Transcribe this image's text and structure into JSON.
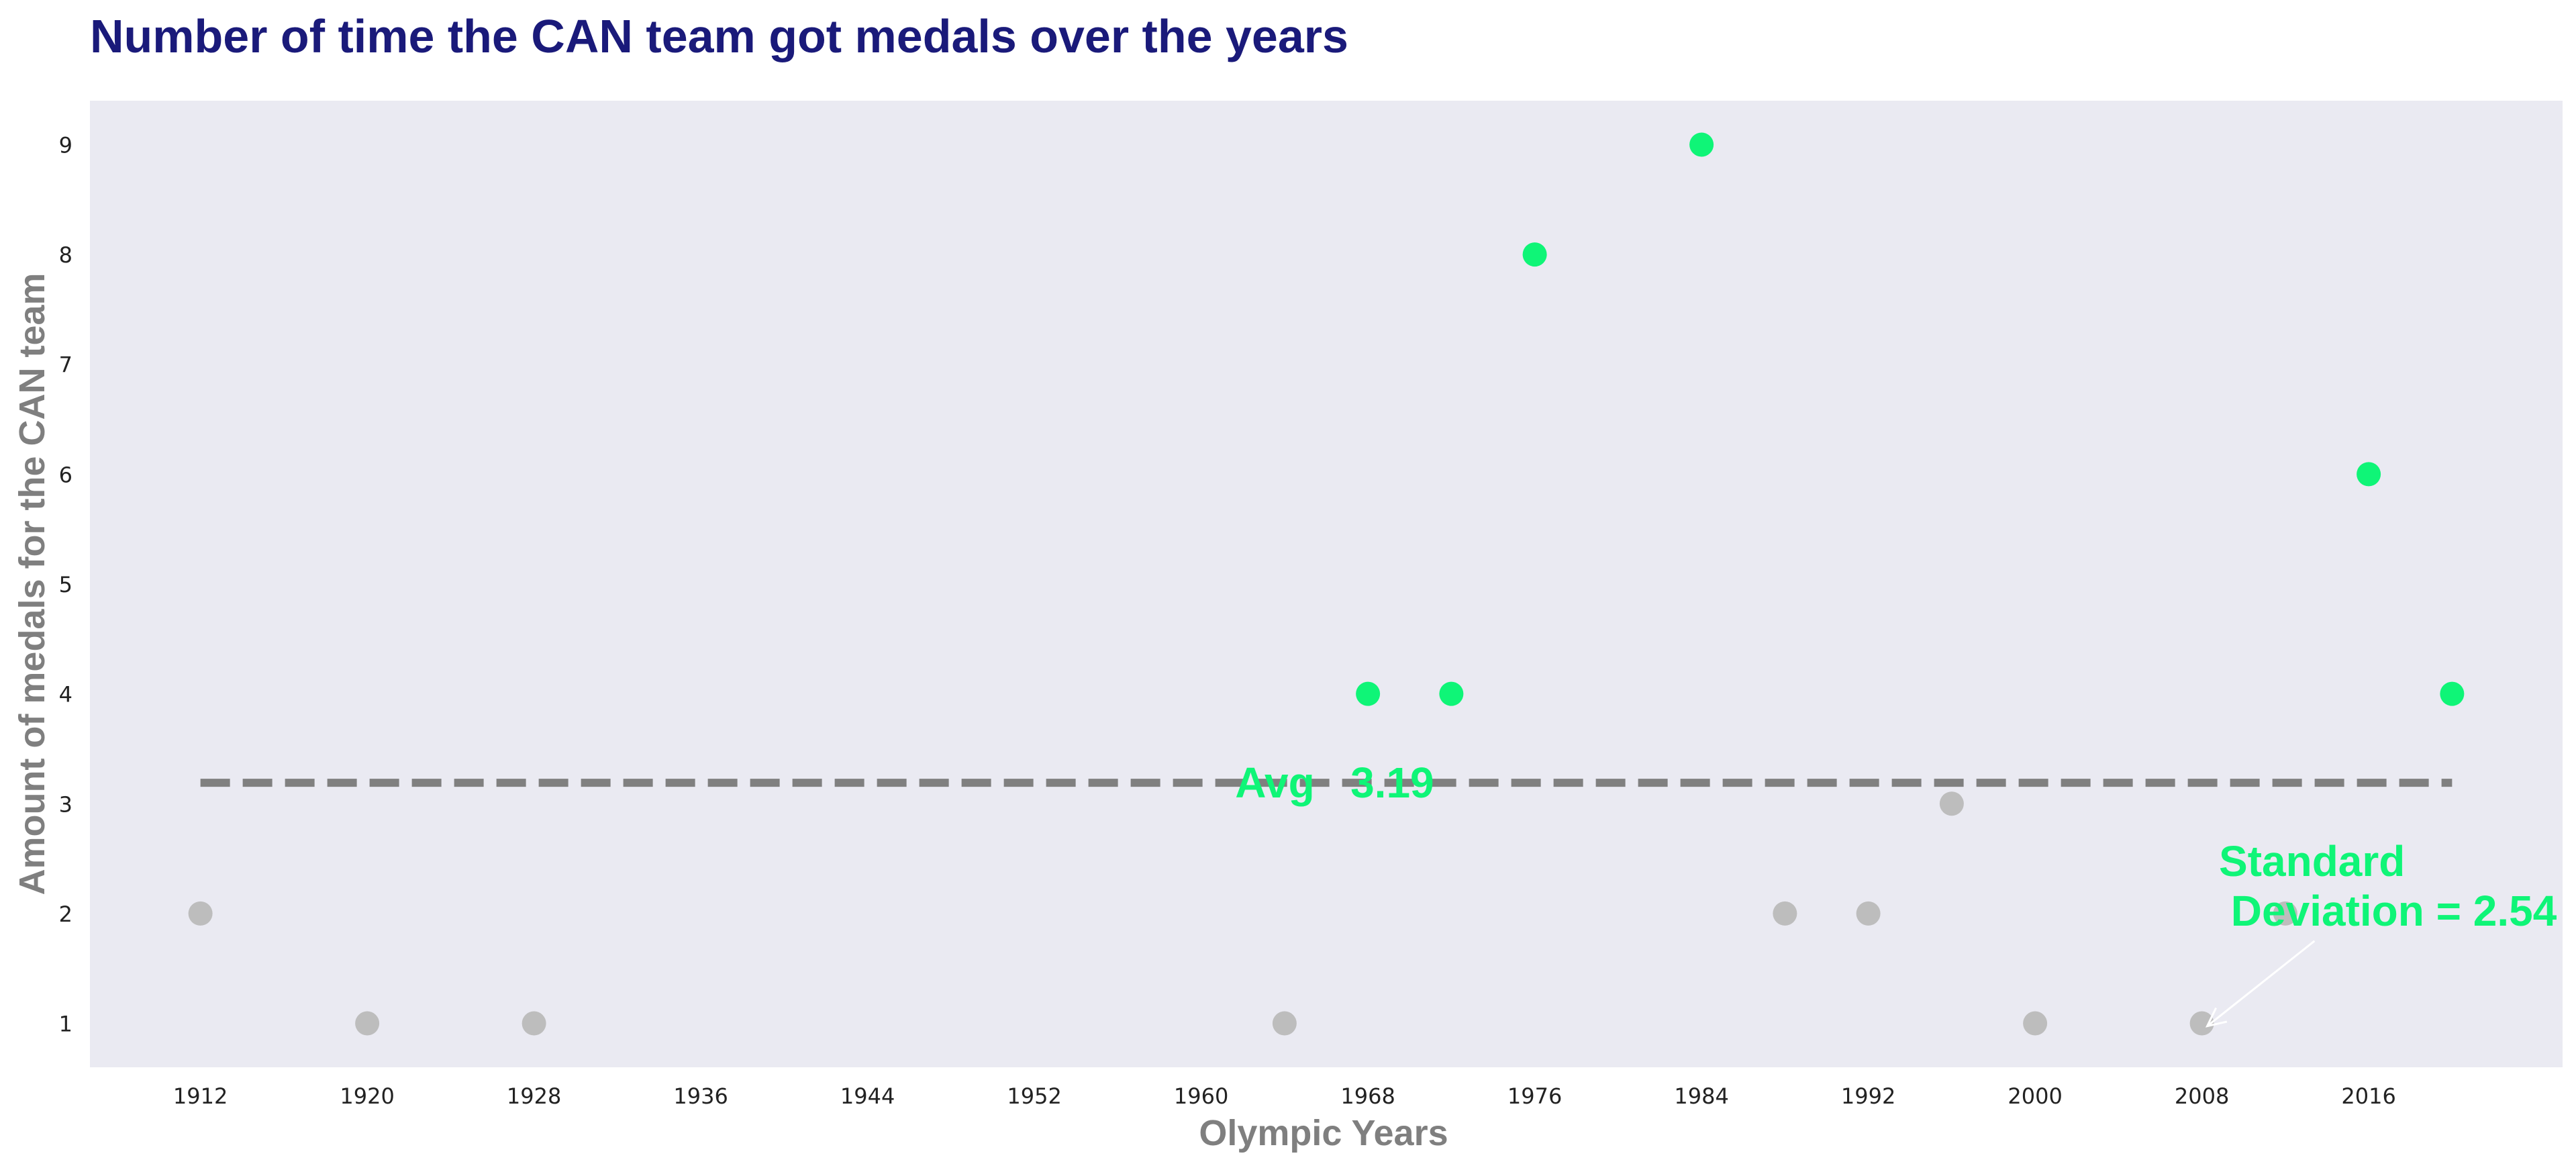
{
  "chart_data": {
    "type": "scatter",
    "title": "Number of time the CAN team got medals over the years",
    "xlabel": "Olympic Years",
    "ylabel": "Amount of medals for the CAN team",
    "xlim": [
      1906.7,
      2025.3
    ],
    "ylim": [
      0.6,
      9.4
    ],
    "xticks": [
      1912,
      1920,
      1928,
      1936,
      1944,
      1952,
      1960,
      1968,
      1976,
      1984,
      1992,
      2000,
      2008,
      2016
    ],
    "yticks": [
      1,
      2,
      3,
      4,
      5,
      6,
      7,
      8,
      9
    ],
    "grid": false,
    "points": [
      {
        "x": 1912,
        "y": 2,
        "above_average": false
      },
      {
        "x": 1920,
        "y": 1,
        "above_average": false
      },
      {
        "x": 1928,
        "y": 1,
        "above_average": false
      },
      {
        "x": 1964,
        "y": 1,
        "above_average": false
      },
      {
        "x": 1968,
        "y": 4,
        "above_average": true
      },
      {
        "x": 1972,
        "y": 4,
        "above_average": true
      },
      {
        "x": 1976,
        "y": 8,
        "above_average": true
      },
      {
        "x": 1984,
        "y": 9,
        "above_average": true
      },
      {
        "x": 1988,
        "y": 2,
        "above_average": false
      },
      {
        "x": 1992,
        "y": 2,
        "above_average": false
      },
      {
        "x": 1996,
        "y": 3,
        "above_average": false
      },
      {
        "x": 2000,
        "y": 1,
        "above_average": false
      },
      {
        "x": 2008,
        "y": 1,
        "above_average": false
      },
      {
        "x": 2012,
        "y": 2,
        "above_average": false
      },
      {
        "x": 2016,
        "y": 6,
        "above_average": true
      },
      {
        "x": 2020,
        "y": 4,
        "above_average": true
      }
    ],
    "average": {
      "value": 3.19,
      "x_start": 1912,
      "x_end": 2020,
      "label": "Avg   3.19"
    },
    "std_annotation": {
      "label_line1": "Standard",
      "label_line2": " Deviation = 2.54",
      "arrow_target": {
        "x": 2008,
        "y": 1
      }
    },
    "colors": {
      "plot_background": "#eaeaf2",
      "above_average": "#0ff577",
      "below_average": "#bdbdbd",
      "average_line": "#808080",
      "title": "#1a1a7a",
      "axis_label": "#7f7f7f",
      "annotation": "#0ff577",
      "arrow": "#ffffff"
    }
  }
}
